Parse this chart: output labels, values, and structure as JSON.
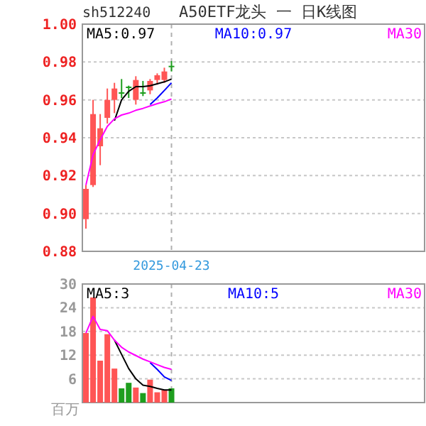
{
  "chart_data": [
    {
      "type": "candlestick",
      "title": "A50ETF龙头 一 日K线图",
      "subtitle": "sh512240",
      "categories": [
        null,
        null,
        null,
        null,
        null,
        null,
        null,
        null,
        null,
        null,
        null,
        null,
        "2025-04-23",
        null,
        null,
        null,
        null,
        null,
        null,
        null,
        null,
        null,
        null,
        null,
        null,
        null,
        null,
        null,
        null,
        null,
        null,
        null,
        null,
        null,
        null,
        null,
        null,
        null,
        null,
        null,
        null,
        null,
        null,
        null,
        null,
        null,
        null,
        null
      ],
      "ohlc": [
        [
          0.897,
          0.915,
          0.892,
          0.913
        ],
        [
          0.915,
          0.96,
          0.914,
          0.9525
        ],
        [
          0.9355,
          0.9525,
          0.9255,
          0.945
        ],
        [
          0.9505,
          0.966,
          0.9475,
          0.96
        ],
        [
          0.96,
          0.969,
          0.953,
          0.966
        ],
        [
          0.964,
          0.971,
          0.961,
          0.9635
        ],
        [
          0.967,
          0.9675,
          0.961,
          0.9665
        ],
        [
          0.96,
          0.9725,
          0.9575,
          0.9705
        ],
        [
          0.964,
          0.97,
          0.962,
          0.9635
        ],
        [
          0.965,
          0.971,
          0.963,
          0.97
        ],
        [
          0.9705,
          0.974,
          0.968,
          0.973
        ],
        [
          0.9705,
          0.977,
          0.969,
          0.975
        ],
        [
          0.978,
          0.9805,
          0.975,
          0.9775
        ],
        null,
        null,
        null,
        null,
        null,
        null,
        null,
        null,
        null,
        null,
        null,
        null,
        null,
        null,
        null,
        null,
        null,
        null,
        null,
        null,
        null,
        null,
        null,
        null,
        null,
        null,
        null,
        null,
        null,
        null,
        null,
        null,
        null,
        null,
        null
      ],
      "colors": [
        "#ff5555",
        "#ff5555",
        "#ff5555",
        "#ff5555",
        "#ff5555",
        "#1e9e1e",
        "#1e9e1e",
        "#ff5555",
        "#1e9e1e",
        "#ff5555",
        "#ff5555",
        "#ff5555",
        "#1e9e1e",
        null,
        null,
        null,
        null,
        null,
        null,
        null,
        null,
        null,
        null,
        null,
        null,
        null,
        null,
        null,
        null,
        null,
        null,
        null,
        null,
        null,
        null,
        null,
        null,
        null,
        null,
        null,
        null,
        null,
        null,
        null,
        null,
        null,
        null,
        null
      ],
      "series": [
        {
          "type": "line",
          "name": "MA5:0.97",
          "color": "#000000",
          "values": [
            null,
            null,
            null,
            null,
            0.949,
            0.96,
            0.9645,
            0.967,
            0.967,
            0.9675,
            0.9685,
            0.9695,
            0.971,
            null,
            null,
            null,
            null,
            null,
            null,
            null,
            null,
            null,
            null,
            null,
            null,
            null,
            null,
            null,
            null,
            null,
            null,
            null,
            null,
            null,
            null,
            null,
            null,
            null,
            null,
            null,
            null,
            null,
            null,
            null,
            null,
            null,
            null,
            null
          ]
        },
        {
          "type": "line",
          "name": "MA10:0.97",
          "color": "#0000ff",
          "values": [
            null,
            null,
            null,
            null,
            null,
            null,
            null,
            null,
            null,
            0.9575,
            0.961,
            0.965,
            0.969,
            null,
            null,
            null,
            null,
            null,
            null,
            null,
            null,
            null,
            null,
            null,
            null,
            null,
            null,
            null,
            null,
            null,
            null,
            null,
            null,
            null,
            null,
            null,
            null,
            null,
            null,
            null,
            null,
            null,
            null,
            null,
            null,
            null,
            null,
            null
          ]
        },
        {
          "type": "line",
          "name": "MA30",
          "color": "#ff00ff",
          "values": [
            0.915,
            0.931,
            0.939,
            0.946,
            0.95,
            0.952,
            0.953,
            0.9545,
            0.9555,
            0.9568,
            0.958,
            0.959,
            0.9605,
            null,
            null,
            null,
            null,
            null,
            null,
            null,
            null,
            null,
            null,
            null,
            null,
            null,
            null,
            null,
            null,
            null,
            null,
            null,
            null,
            null,
            null,
            null,
            null,
            null,
            null,
            null,
            null,
            null,
            null,
            null,
            null,
            null,
            null,
            null
          ]
        }
      ],
      "ylim": [
        0.88,
        1.0
      ],
      "yticks": [
        0.88,
        {
          "value": 0.9,
          "label": "0.90"
        },
        0.92,
        0.94,
        0.96,
        0.98,
        {
          "value": 1.0,
          "label": "1.00"
        }
      ],
      "grid": true,
      "legend": "top"
    },
    {
      "type": "bar",
      "ylabel": "百万",
      "categories": [
        null,
        null,
        null,
        null,
        null,
        null,
        null,
        null,
        null,
        null,
        null,
        null,
        null,
        null,
        null,
        null,
        null,
        null,
        null,
        null,
        null,
        null,
        null,
        null,
        null,
        null,
        null,
        null,
        null,
        null,
        null,
        null,
        null,
        null,
        null,
        null,
        null,
        null,
        null,
        null,
        null,
        null,
        null,
        null,
        null,
        null,
        null,
        null
      ],
      "values": [
        17.6,
        26.6,
        10.6,
        17.3,
        8.6,
        3.6,
        5.0,
        3.8,
        2.4,
        5.8,
        2.6,
        3.2,
        3.6,
        null,
        null,
        null,
        null,
        null,
        null,
        null,
        null,
        null,
        null,
        null,
        null,
        null,
        null,
        null,
        null,
        null,
        null,
        null,
        null,
        null,
        null,
        null,
        null,
        null,
        null,
        null,
        null,
        null,
        null,
        null,
        null,
        null,
        null,
        null
      ],
      "colors": [
        "#ff5555",
        "#ff5555",
        "#ff5555",
        "#ff5555",
        "#ff5555",
        "#1e9e1e",
        "#1e9e1e",
        "#ff5555",
        "#1e9e1e",
        "#ff5555",
        "#ff5555",
        "#ff5555",
        "#1e9e1e",
        null,
        null,
        null,
        null,
        null,
        null,
        null,
        null,
        null,
        null,
        null,
        null,
        null,
        null,
        null,
        null,
        null,
        null,
        null,
        null,
        null,
        null,
        null,
        null,
        null,
        null,
        null,
        null,
        null,
        null,
        null,
        null,
        null,
        null,
        null
      ],
      "series": [
        {
          "type": "line",
          "name": "MA5:3",
          "color": "#000000",
          "values": [
            null,
            null,
            null,
            null,
            15.8,
            12.2,
            8.6,
            6.0,
            4.4,
            4.1,
            3.6,
            3.2,
            3.2,
            null,
            null,
            null,
            null,
            null,
            null,
            null,
            null,
            null,
            null,
            null,
            null,
            null,
            null,
            null,
            null,
            null,
            null,
            null,
            null,
            null,
            null,
            null,
            null,
            null,
            null,
            null,
            null,
            null,
            null,
            null,
            null,
            null,
            null,
            null
          ]
        },
        {
          "type": "line",
          "name": "MA10:5",
          "color": "#0000ff",
          "values": [
            null,
            null,
            null,
            null,
            null,
            null,
            null,
            null,
            null,
            10.1,
            8.4,
            6.5,
            5.6,
            null,
            null,
            null,
            null,
            null,
            null,
            null,
            null,
            null,
            null,
            null,
            null,
            null,
            null,
            null,
            null,
            null,
            null,
            null,
            null,
            null,
            null,
            null,
            null,
            null,
            null,
            null,
            null,
            null,
            null,
            null,
            null,
            null,
            null,
            null
          ]
        },
        {
          "type": "line",
          "name": "MA30",
          "color": "#ff00ff",
          "values": [
            17.6,
            21.8,
            18.5,
            18.2,
            15.8,
            14.0,
            12.8,
            11.9,
            11.0,
            10.3,
            9.6,
            8.9,
            8.4,
            null,
            null,
            null,
            null,
            null,
            null,
            null,
            null,
            null,
            null,
            null,
            null,
            null,
            null,
            null,
            null,
            null,
            null,
            null,
            null,
            null,
            null,
            null,
            null,
            null,
            null,
            null,
            null,
            null,
            null,
            null,
            null,
            null,
            null,
            null
          ]
        }
      ],
      "ylim": [
        0,
        30
      ],
      "yticks": [
        6,
        12,
        18,
        24,
        30
      ],
      "grid": true,
      "legend": "top",
      "tick_labels": "y"
    }
  ]
}
